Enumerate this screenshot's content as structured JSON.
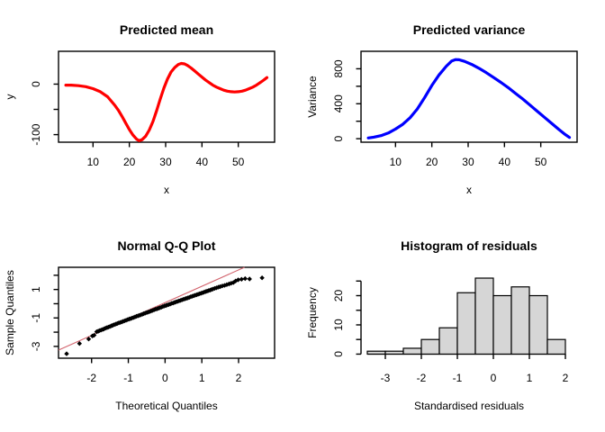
{
  "page": {
    "background": "#ffffff"
  },
  "chart_data": [
    {
      "id": "predicted-mean",
      "type": "line",
      "title": "Predicted mean",
      "xlabel": "x",
      "ylabel": "y",
      "line_color": "#ff0000",
      "line_width": 3.2,
      "xlim": [
        0.5,
        60
      ],
      "ylim": [
        -115,
        65
      ],
      "xticks": [
        {
          "v": 10,
          "label": "10"
        },
        {
          "v": 20,
          "label": "20"
        },
        {
          "v": 30,
          "label": "30"
        },
        {
          "v": 40,
          "label": "40"
        },
        {
          "v": 50,
          "label": "50"
        }
      ],
      "yticks": [
        {
          "v": -100,
          "label": "-100"
        },
        {
          "v": -50,
          "label": ""
        },
        {
          "v": 0,
          "label": "0"
        }
      ],
      "points": [
        [
          2.5,
          -2
        ],
        [
          4,
          -2
        ],
        [
          6,
          -3
        ],
        [
          8,
          -5
        ],
        [
          10,
          -9
        ],
        [
          12,
          -15
        ],
        [
          14,
          -25
        ],
        [
          16,
          -42
        ],
        [
          17,
          -52
        ],
        [
          18,
          -64
        ],
        [
          19,
          -77
        ],
        [
          20,
          -90
        ],
        [
          21,
          -101
        ],
        [
          22,
          -109
        ],
        [
          22.7,
          -112
        ],
        [
          23.5,
          -110
        ],
        [
          24.5,
          -103
        ],
        [
          25.5,
          -91
        ],
        [
          26.5,
          -74
        ],
        [
          27.5,
          -53
        ],
        [
          28.5,
          -30
        ],
        [
          29.5,
          -8
        ],
        [
          30.5,
          10
        ],
        [
          31.5,
          24
        ],
        [
          32.5,
          33
        ],
        [
          33.5,
          39
        ],
        [
          34.3,
          41
        ],
        [
          35.2,
          40
        ],
        [
          36,
          37
        ],
        [
          37,
          32
        ],
        [
          38,
          26
        ],
        [
          39,
          20
        ],
        [
          40,
          14
        ],
        [
          41,
          8
        ],
        [
          42,
          3
        ],
        [
          43,
          -2
        ],
        [
          44,
          -6
        ],
        [
          45,
          -9
        ],
        [
          46,
          -12
        ],
        [
          47,
          -14
        ],
        [
          48,
          -15
        ],
        [
          49,
          -15.5
        ],
        [
          50,
          -15
        ],
        [
          51,
          -14
        ],
        [
          52,
          -12
        ],
        [
          53,
          -9
        ],
        [
          54,
          -6
        ],
        [
          55,
          -2
        ],
        [
          56,
          3
        ],
        [
          57,
          8
        ],
        [
          57.9,
          13
        ]
      ]
    },
    {
      "id": "predicted-variance",
      "type": "line",
      "title": "Predicted variance",
      "xlabel": "x",
      "ylabel": "Variance",
      "line_color": "#0000ff",
      "line_width": 3.2,
      "xlim": [
        0.5,
        60
      ],
      "ylim": [
        -40,
        1000
      ],
      "xticks": [
        {
          "v": 10,
          "label": "10"
        },
        {
          "v": 20,
          "label": "20"
        },
        {
          "v": 30,
          "label": "30"
        },
        {
          "v": 40,
          "label": "40"
        },
        {
          "v": 50,
          "label": "50"
        }
      ],
      "yticks": [
        {
          "v": 0,
          "label": "0"
        },
        {
          "v": 200,
          "label": ""
        },
        {
          "v": 400,
          "label": "400"
        },
        {
          "v": 600,
          "label": ""
        },
        {
          "v": 800,
          "label": "800"
        }
      ],
      "points": [
        [
          2.5,
          8
        ],
        [
          4,
          18
        ],
        [
          6,
          35
        ],
        [
          8,
          65
        ],
        [
          10,
          110
        ],
        [
          12,
          165
        ],
        [
          14,
          240
        ],
        [
          16,
          340
        ],
        [
          18,
          470
        ],
        [
          20,
          610
        ],
        [
          22,
          730
        ],
        [
          24,
          830
        ],
        [
          25.5,
          890
        ],
        [
          26.5,
          905
        ],
        [
          27.5,
          903
        ],
        [
          29,
          885
        ],
        [
          31,
          850
        ],
        [
          33,
          805
        ],
        [
          35,
          755
        ],
        [
          37,
          700
        ],
        [
          39,
          645
        ],
        [
          41,
          585
        ],
        [
          43,
          520
        ],
        [
          45,
          455
        ],
        [
          47,
          385
        ],
        [
          49,
          315
        ],
        [
          51,
          245
        ],
        [
          53,
          175
        ],
        [
          55,
          105
        ],
        [
          56.5,
          55
        ],
        [
          57.9,
          15
        ]
      ]
    },
    {
      "id": "normal-qq-plot",
      "type": "scatter",
      "title": "Normal Q-Q Plot",
      "xlabel": "Theoretical Quantiles",
      "ylabel": "Sample Quantiles",
      "point_color": "#000000",
      "ref_line": {
        "color": "#d2646e",
        "x1": -2.9,
        "y1": -3.26,
        "x2": 2.16,
        "y2": 2.56
      },
      "xlim": [
        -2.9,
        2.98
      ],
      "ylim": [
        -3.83,
        2.56
      ],
      "xticks": [
        {
          "v": -2,
          "label": "-2"
        },
        {
          "v": -1,
          "label": "-1"
        },
        {
          "v": 0,
          "label": "0"
        },
        {
          "v": 1,
          "label": "1"
        },
        {
          "v": 2,
          "label": "2"
        }
      ],
      "yticks": [
        {
          "v": -3,
          "label": "-3"
        },
        {
          "v": -2,
          "label": ""
        },
        {
          "v": -1,
          "label": "-1"
        },
        {
          "v": 0,
          "label": ""
        },
        {
          "v": 1,
          "label": "1"
        },
        {
          "v": 2,
          "label": ""
        }
      ],
      "points": [
        [
          -2.68,
          -3.52
        ],
        [
          -2.33,
          -2.8
        ],
        [
          -2.08,
          -2.48
        ],
        [
          -1.98,
          -2.27
        ],
        [
          -1.93,
          -2.21
        ],
        [
          -1.86,
          -1.97
        ],
        [
          -1.82,
          -1.93
        ],
        [
          -1.78,
          -1.89
        ],
        [
          -1.74,
          -1.85
        ],
        [
          -1.7,
          -1.81
        ],
        [
          -1.66,
          -1.77
        ],
        [
          -1.62,
          -1.72
        ],
        [
          -1.58,
          -1.68
        ],
        [
          -1.54,
          -1.64
        ],
        [
          -1.5,
          -1.6
        ],
        [
          -1.46,
          -1.55
        ],
        [
          -1.42,
          -1.51
        ],
        [
          -1.38,
          -1.47
        ],
        [
          -1.34,
          -1.43
        ],
        [
          -1.3,
          -1.39
        ],
        [
          -1.26,
          -1.35
        ],
        [
          -1.22,
          -1.32
        ],
        [
          -1.18,
          -1.28
        ],
        [
          -1.14,
          -1.24
        ],
        [
          -1.1,
          -1.2
        ],
        [
          -1.06,
          -1.16
        ],
        [
          -1.02,
          -1.12
        ],
        [
          -0.98,
          -1.08
        ],
        [
          -0.94,
          -1.05
        ],
        [
          -0.9,
          -1.01
        ],
        [
          -0.86,
          -0.97
        ],
        [
          -0.82,
          -0.93
        ],
        [
          -0.78,
          -0.89
        ],
        [
          -0.74,
          -0.85
        ],
        [
          -0.7,
          -0.82
        ],
        [
          -0.66,
          -0.78
        ],
        [
          -0.62,
          -0.74
        ],
        [
          -0.58,
          -0.7
        ],
        [
          -0.54,
          -0.66
        ],
        [
          -0.5,
          -0.62
        ],
        [
          -0.46,
          -0.59
        ],
        [
          -0.42,
          -0.55
        ],
        [
          -0.38,
          -0.51
        ],
        [
          -0.34,
          -0.47
        ],
        [
          -0.3,
          -0.43
        ],
        [
          -0.26,
          -0.39
        ],
        [
          -0.22,
          -0.36
        ],
        [
          -0.18,
          -0.32
        ],
        [
          -0.14,
          -0.28
        ],
        [
          -0.1,
          -0.24
        ],
        [
          -0.06,
          -0.2
        ],
        [
          -0.02,
          -0.16
        ],
        [
          0.02,
          -0.13
        ],
        [
          0.06,
          -0.09
        ],
        [
          0.1,
          -0.06
        ],
        [
          0.14,
          -0.02
        ],
        [
          0.18,
          0.02
        ],
        [
          0.22,
          0.05
        ],
        [
          0.26,
          0.09
        ],
        [
          0.3,
          0.13
        ],
        [
          0.34,
          0.16
        ],
        [
          0.38,
          0.2
        ],
        [
          0.42,
          0.23
        ],
        [
          0.46,
          0.27
        ],
        [
          0.5,
          0.31
        ],
        [
          0.54,
          0.34
        ],
        [
          0.58,
          0.38
        ],
        [
          0.62,
          0.41
        ],
        [
          0.66,
          0.45
        ],
        [
          0.7,
          0.49
        ],
        [
          0.74,
          0.52
        ],
        [
          0.78,
          0.56
        ],
        [
          0.82,
          0.59
        ],
        [
          0.86,
          0.63
        ],
        [
          0.9,
          0.67
        ],
        [
          0.94,
          0.7
        ],
        [
          0.98,
          0.74
        ],
        [
          1.02,
          0.77
        ],
        [
          1.06,
          0.81
        ],
        [
          1.1,
          0.85
        ],
        [
          1.14,
          0.88
        ],
        [
          1.18,
          0.92
        ],
        [
          1.22,
          0.95
        ],
        [
          1.26,
          0.99
        ],
        [
          1.3,
          1.03
        ],
        [
          1.35,
          1.08
        ],
        [
          1.4,
          1.12
        ],
        [
          1.45,
          1.16
        ],
        [
          1.5,
          1.2
        ],
        [
          1.56,
          1.25
        ],
        [
          1.62,
          1.29
        ],
        [
          1.68,
          1.34
        ],
        [
          1.74,
          1.39
        ],
        [
          1.8,
          1.44
        ],
        [
          1.86,
          1.49
        ],
        [
          1.92,
          1.6
        ],
        [
          1.99,
          1.68
        ],
        [
          2.08,
          1.72
        ],
        [
          2.18,
          1.76
        ],
        [
          2.3,
          1.74
        ],
        [
          2.64,
          1.82
        ]
      ]
    },
    {
      "id": "histogram-of-residuals",
      "type": "bar",
      "title": "Histogram of residuals",
      "xlabel": "Standardised residuals",
      "ylabel": "Frequency",
      "bar_fill": "#d6d6d6",
      "bar_stroke": "#000000",
      "bin_start": -3.5,
      "bin_width": 0.5,
      "counts": [
        1,
        1,
        2,
        5,
        9,
        21,
        26,
        20,
        23,
        20,
        5
      ],
      "xlim": [
        -3.675,
        2.325
      ],
      "ylim": [
        -1.4,
        29.7
      ],
      "xticks": [
        {
          "v": -3,
          "label": "-3"
        },
        {
          "v": -2,
          "label": "-2"
        },
        {
          "v": -1,
          "label": "-1"
        },
        {
          "v": 0,
          "label": "0"
        },
        {
          "v": 1,
          "label": "1"
        },
        {
          "v": 2,
          "label": "2"
        }
      ],
      "yticks": [
        {
          "v": 0,
          "label": "0"
        },
        {
          "v": 5,
          "label": ""
        },
        {
          "v": 10,
          "label": "10"
        },
        {
          "v": 15,
          "label": ""
        },
        {
          "v": 20,
          "label": "20"
        },
        {
          "v": 25,
          "label": ""
        }
      ]
    }
  ]
}
